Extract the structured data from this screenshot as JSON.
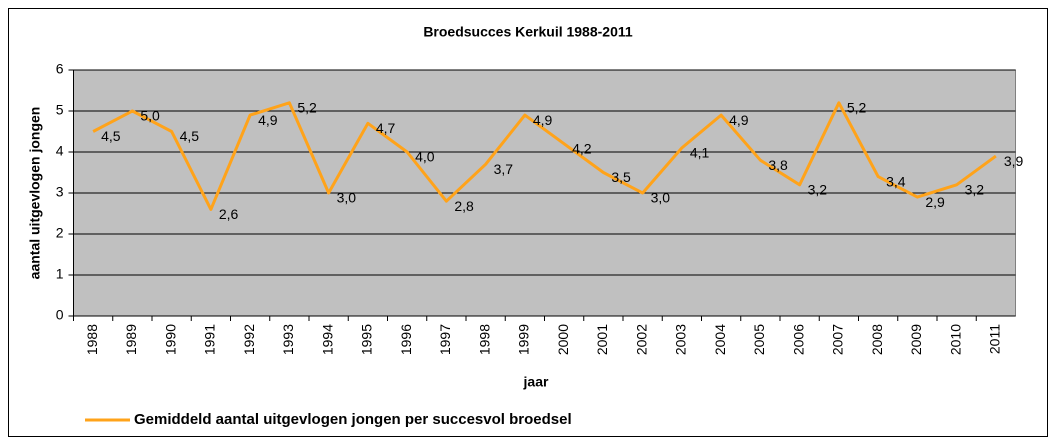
{
  "chart_data": {
    "type": "line",
    "title": "Broedsucces Kerkuil 1988-2011",
    "xlabel": "jaar",
    "ylabel": "aantal uitgevlogen jongen",
    "categories": [
      "1988",
      "1989",
      "1990",
      "1991",
      "1992",
      "1993",
      "1994",
      "1995",
      "1996",
      "1997",
      "1998",
      "1999",
      "2000",
      "2001",
      "2002",
      "2003",
      "2004",
      "2005",
      "2006",
      "2007",
      "2008",
      "2009",
      "2010",
      "2011"
    ],
    "series": [
      {
        "name": "Gemiddeld aantal uitgevlogen jongen per succesvol broedsel",
        "color": "#ffa31a",
        "values": [
          4.5,
          5.0,
          4.5,
          2.6,
          4.9,
          5.2,
          3.0,
          4.7,
          4.0,
          2.8,
          3.7,
          4.9,
          4.2,
          3.5,
          3.0,
          4.1,
          4.9,
          3.8,
          3.2,
          5.2,
          3.4,
          2.9,
          3.2,
          3.9
        ],
        "value_labels": [
          "4,5",
          "5,0",
          "4,5",
          "2,6",
          "4,9",
          "5,2",
          "3,0",
          "4,7",
          "4,0",
          "2,8",
          "3,7",
          "4,9",
          "4,2",
          "3,5",
          "3,0",
          "4,1",
          "4,9",
          "3,8",
          "3,2",
          "5,2",
          "3,4",
          "2,9",
          "3,2",
          "3,9"
        ]
      }
    ],
    "ylim": [
      0,
      6
    ],
    "yticks": [
      0,
      1,
      2,
      3,
      4,
      5,
      6
    ],
    "grid": true,
    "legend": "bottom"
  }
}
